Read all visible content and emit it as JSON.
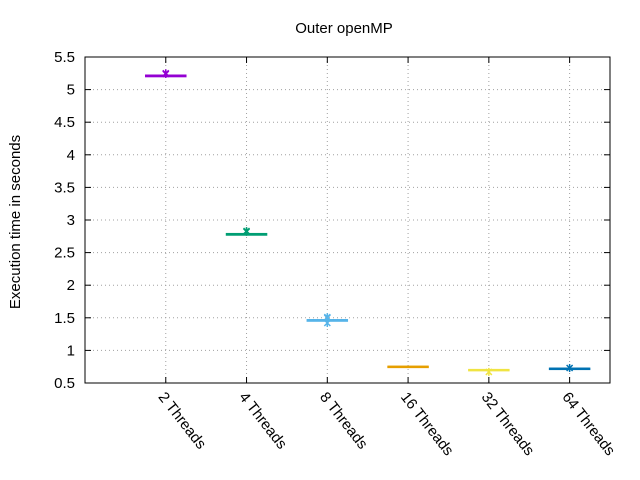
{
  "chart_data": {
    "type": "boxplot",
    "title": "Outer openMP",
    "xlabel": "",
    "ylabel": "Execution time in seconds",
    "categories": [
      "2 Threads",
      "4 Threads",
      "8 Threads",
      "16 Threads",
      "32 Threads",
      "64 Threads"
    ],
    "ylim": [
      0.5,
      5.5
    ],
    "yticks": [
      "0.5",
      "1",
      "1.5",
      "2",
      "2.5",
      "3",
      "3.5",
      "4",
      "4.5",
      "5",
      "5.5"
    ],
    "grid": true,
    "legend": "none",
    "series": [
      {
        "category": "2 Threads",
        "color": "#9400d3",
        "min": 5.19,
        "q1": 5.2,
        "median": 5.21,
        "q3": 5.22,
        "max": 5.23,
        "outliers": [
          5.25,
          5.24
        ]
      },
      {
        "category": "4 Threads",
        "color": "#009e73",
        "min": 2.76,
        "q1": 2.77,
        "median": 2.78,
        "q3": 2.79,
        "max": 2.8,
        "outliers": [
          2.83,
          2.82
        ]
      },
      {
        "category": "8 Threads",
        "color": "#56b4e9",
        "min": 1.43,
        "q1": 1.45,
        "median": 1.46,
        "q3": 1.47,
        "max": 1.49,
        "outliers": [
          1.42,
          1.5,
          1.51
        ]
      },
      {
        "category": "16 Threads",
        "color": "#e69f00",
        "min": 0.74,
        "q1": 0.745,
        "median": 0.75,
        "q3": 0.755,
        "max": 0.76,
        "outliers": []
      },
      {
        "category": "32 Threads",
        "color": "#f0e442",
        "min": 0.68,
        "q1": 0.69,
        "median": 0.7,
        "q3": 0.705,
        "max": 0.71,
        "outliers": [
          0.67
        ]
      },
      {
        "category": "64 Threads",
        "color": "#0072b2",
        "min": 0.71,
        "q1": 0.715,
        "median": 0.72,
        "q3": 0.725,
        "max": 0.73,
        "outliers": [
          0.73
        ]
      }
    ]
  }
}
